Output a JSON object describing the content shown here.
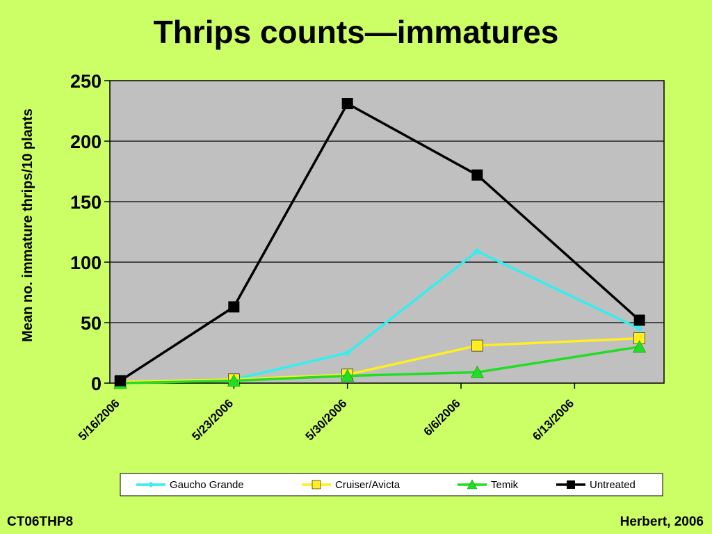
{
  "footer": {
    "left": "CT06THP8",
    "right": "Herbert, 2006"
  },
  "colors": {
    "background": "#CCFF66",
    "plot_area": "#C0C0C0",
    "gaucho": "#33EEEE",
    "cruiser": "#FFEE22",
    "temik": "#22DD22",
    "untreated": "#000000"
  },
  "chart_data": {
    "type": "line",
    "title": "Thrips counts—immatures",
    "ylabel": "Mean no. immature thrips/10 plants",
    "xlabel": "",
    "ylim": [
      0,
      250
    ],
    "yticks": [
      0,
      50,
      100,
      150,
      200,
      250
    ],
    "xlim": [
      "2006-05-16",
      "2006-06-18"
    ],
    "xticks": [
      "5/16/2006",
      "5/23/2006",
      "5/30/2006",
      "6/6/2006",
      "6/13/2006"
    ],
    "x": [
      "2006-05-16",
      "2006-05-23",
      "2006-05-30",
      "2006-06-07",
      "2006-06-17"
    ],
    "grid": true,
    "legend_position": "bottom",
    "series": [
      {
        "name": "Gaucho Grande",
        "color": "#33EEEE",
        "marker": "diamond",
        "values": [
          1,
          3,
          25,
          109,
          45
        ]
      },
      {
        "name": "Cruiser/Avicta",
        "color": "#FFEE22",
        "marker": "square",
        "values": [
          1,
          3,
          7,
          31,
          37
        ]
      },
      {
        "name": "Temik",
        "color": "#22DD22",
        "marker": "triangle",
        "values": [
          0,
          2,
          6,
          9,
          30
        ]
      },
      {
        "name": "Untreated",
        "color": "#000000",
        "marker": "square",
        "values": [
          2,
          63,
          231,
          172,
          52
        ]
      }
    ]
  }
}
